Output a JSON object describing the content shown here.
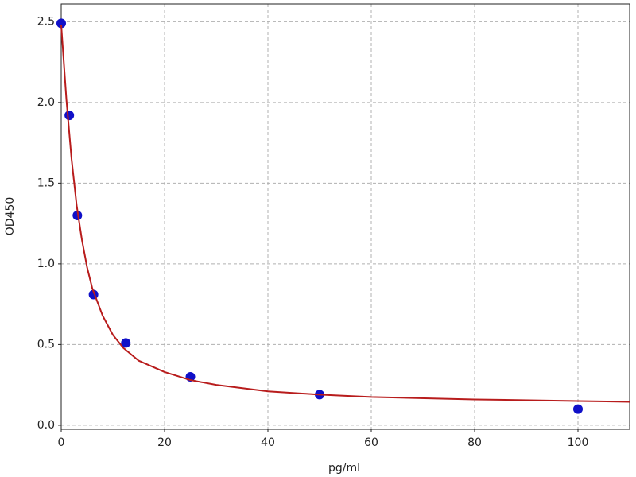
{
  "chart_data": {
    "type": "scatter",
    "x_label": "pg/ml",
    "y_label": "OD450",
    "points": {
      "x": [
        0,
        1.5625,
        3.125,
        6.25,
        12.5,
        25,
        50,
        100
      ],
      "values": [
        2.49,
        1.92,
        1.3,
        0.81,
        0.51,
        0.3,
        0.19,
        0.1
      ],
      "color": "#1010c8"
    },
    "fit": {
      "x": [
        0,
        1,
        2,
        3,
        4,
        5,
        6,
        8,
        10,
        12,
        15,
        20,
        25,
        30,
        40,
        50,
        60,
        80,
        100,
        110
      ],
      "values": [
        2.48,
        2.02,
        1.65,
        1.36,
        1.15,
        0.98,
        0.85,
        0.68,
        0.56,
        0.48,
        0.4,
        0.33,
        0.28,
        0.25,
        0.21,
        0.19,
        0.175,
        0.16,
        0.15,
        0.145
      ],
      "color": "#b81c1c"
    },
    "xlim": [
      0,
      110
    ],
    "ylim": [
      -0.025,
      2.61
    ],
    "xticks": [
      0,
      20,
      40,
      60,
      80,
      100
    ],
    "yticks": [
      {
        "value": 0,
        "label": "0.0"
      },
      0.5,
      {
        "value": 1,
        "label": "1.0"
      },
      1.5,
      {
        "value": 2,
        "label": "2.0"
      },
      2.5
    ],
    "grid": true
  }
}
